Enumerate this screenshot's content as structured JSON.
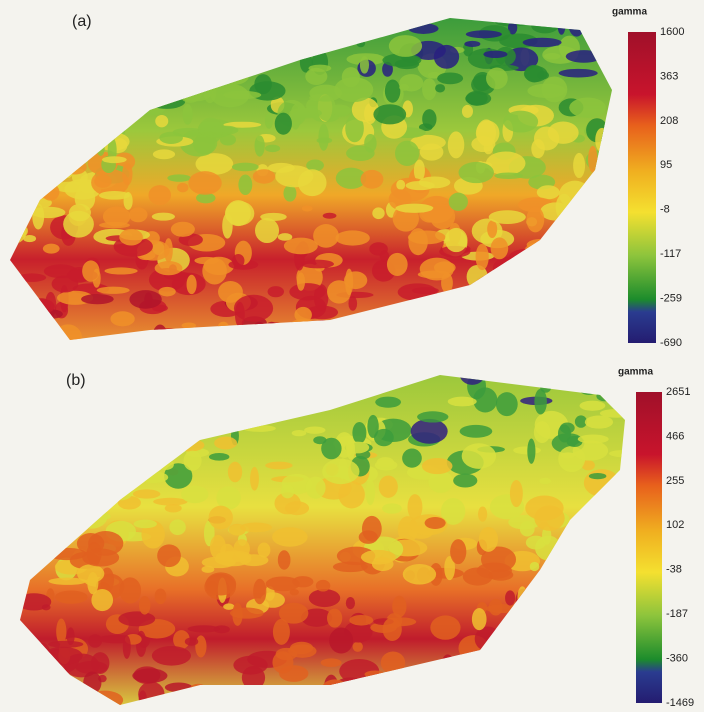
{
  "panels": [
    {
      "label": "(a)",
      "colorbar": {
        "title": "gamma",
        "ticks": [
          "1600",
          "363",
          "208",
          "95",
          "-8",
          "-117",
          "-259",
          "-690"
        ]
      }
    },
    {
      "label": "(b)",
      "colorbar": {
        "title": "gamma",
        "ticks": [
          "2651",
          "466",
          "255",
          "102",
          "-38",
          "-187",
          "-360",
          "-1469"
        ]
      }
    }
  ]
}
